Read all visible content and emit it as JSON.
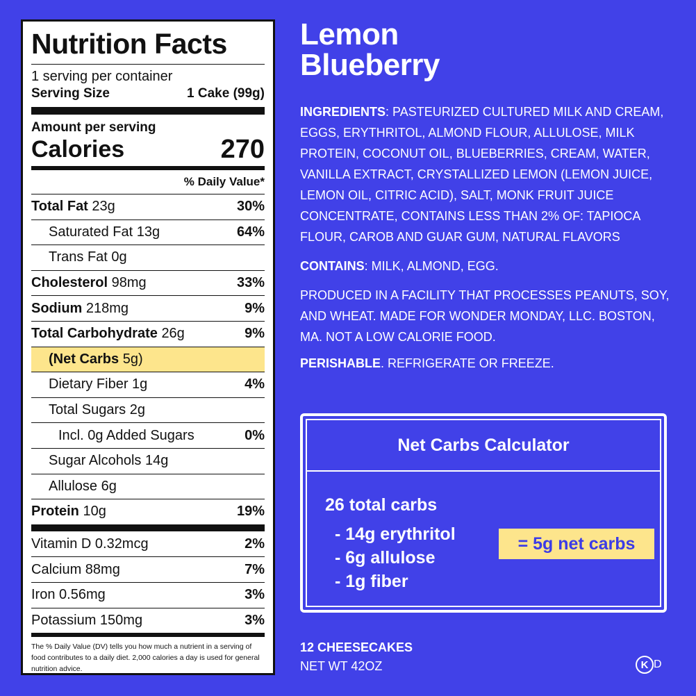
{
  "nutrition": {
    "title": "Nutrition Facts",
    "servings": "1 serving per container",
    "serving_size_label": "Serving Size",
    "serving_size": "1 Cake (99g)",
    "amount_per_serving": "Amount per serving",
    "calories_label": "Calories",
    "calories": "270",
    "daily_value_header": "% Daily Value*",
    "rows": [
      {
        "name": "Total Fat",
        "amount": "23g",
        "dv": "30%"
      },
      {
        "name": "Saturated Fat",
        "amount": "13g",
        "dv": "64%"
      },
      {
        "name": "Trans Fat",
        "amount": "0g"
      },
      {
        "name": "Cholesterol",
        "amount": "98mg",
        "dv": "33%"
      },
      {
        "name": "Sodium",
        "amount": "218mg",
        "dv": "9%"
      },
      {
        "name": "Total Carbohydrate",
        "amount": "26g",
        "dv": "9%"
      },
      {
        "name": "(Net Carbs",
        "amount": "5g)"
      },
      {
        "name": "Dietary Fiber",
        "amount": "1g",
        "dv": "4%"
      },
      {
        "name": "Total Sugars",
        "amount": "2g"
      },
      {
        "name": "Incl. 0g Added Sugars",
        "dv": "0%"
      },
      {
        "name": "Sugar Alcohols",
        "amount": "14g"
      },
      {
        "name": "Allulose",
        "amount": "6g"
      },
      {
        "name": "Protein",
        "amount": "10g",
        "dv": "19%"
      }
    ],
    "vitamins": [
      {
        "name": "Vitamin D 0.32mcg",
        "dv": "2%"
      },
      {
        "name": "Calcium 88mg",
        "dv": "7%"
      },
      {
        "name": "Iron 0.56mg",
        "dv": "3%"
      },
      {
        "name": "Potassium 150mg",
        "dv": "3%"
      }
    ],
    "footnote": "The % Daily Value (DV) tells you how much a nutrient in a serving of food contributes to a daily diet. 2,000 calories a day is used for general nutrition advice."
  },
  "product": {
    "title_lines": [
      "Lemon",
      "Blueberry"
    ],
    "ingredients_label": "INGREDIENTS",
    "ingredients": ": PASTEURIZED CULTURED MILK AND CREAM, EGGS, ERYTHRITOL, ALMOND FLOUR, ALLULOSE, MILK PROTEIN, COCONUT OIL, BLUEBERRIES, CREAM, WATER, VANILLA EXTRACT, CRYSTALLIZED LEMON (LEMON JUICE, LEMON OIL, CITRIC ACID), SALT, MONK FRUIT JUICE CONCENTRATE, CONTAINS LESS THAN 2% OF: TAPIOCA FLOUR, CAROB AND GUAR GUM, NATURAL FLAVORS",
    "contains_label": "CONTAINS",
    "contains": ": MILK, ALMOND, EGG.",
    "facility": "PRODUCED IN A FACILITY THAT PROCESSES PEANUTS, SOY, AND WHEAT. MADE FOR WONDER MONDAY, LLC. BOSTON, MA. NOT A LOW CALORIE FOOD.",
    "perishable_label": "PERISHABLE",
    "perishable": ". REFRIGERATE OR FREEZE."
  },
  "calculator": {
    "title": "Net Carbs Calculator",
    "total": "26 total carbs",
    "subtractions": [
      "- 14g erythritol",
      "- 6g allulose",
      "- 1g fiber"
    ],
    "result": "= 5g net carbs"
  },
  "footer": {
    "count": "12 CHEESECAKES",
    "net_weight": "NET WT 42OZ",
    "logo_circle": "K",
    "logo_letter": "D"
  }
}
